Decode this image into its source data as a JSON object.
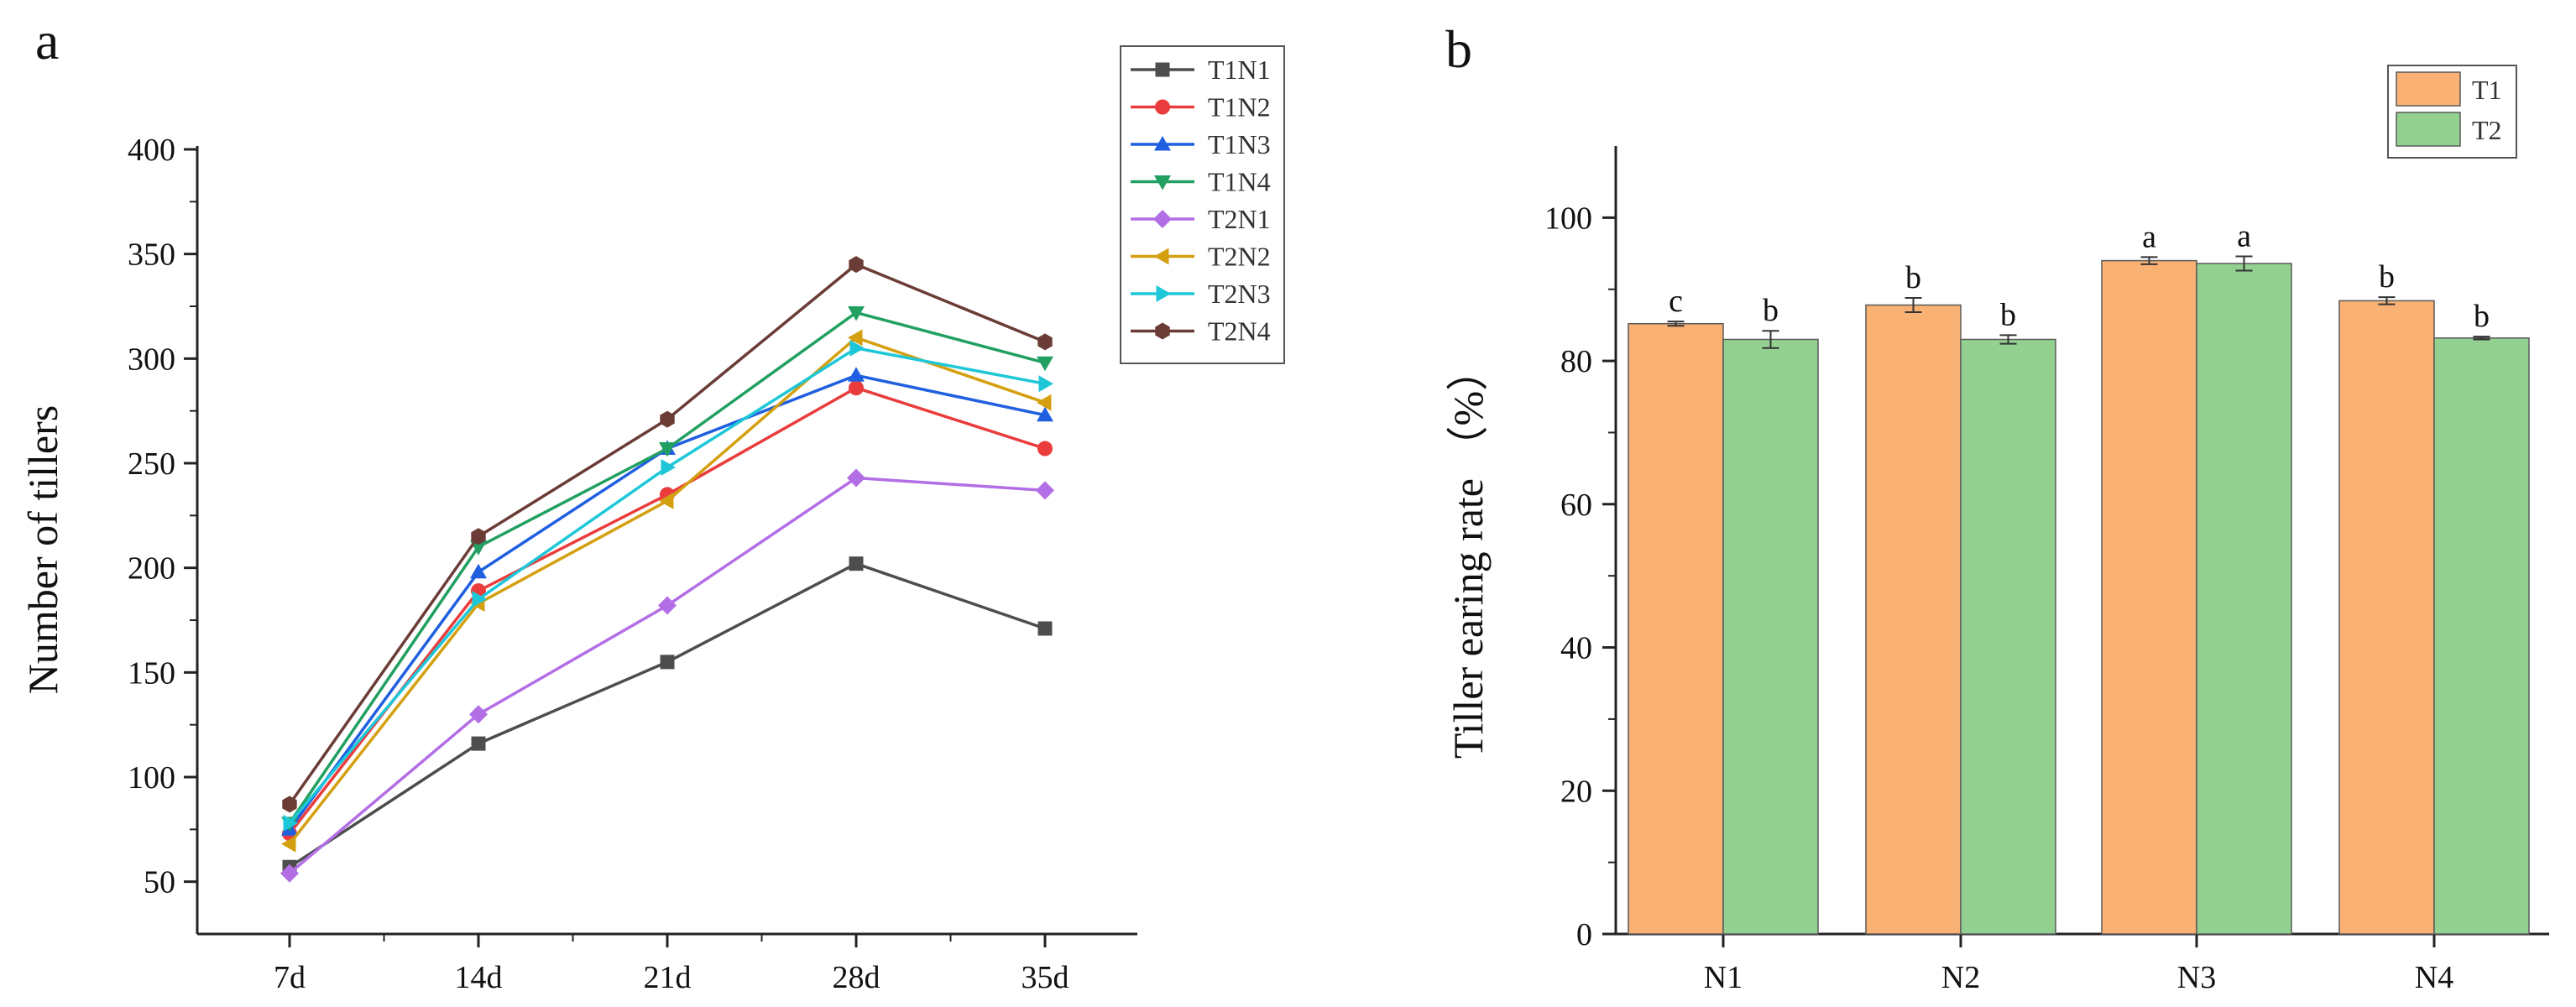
{
  "chart_data": [
    {
      "type": "line",
      "panel_label": "a",
      "title": "",
      "xlabel": "",
      "ylabel": "Number of tillers",
      "categories": [
        "7d",
        "14d",
        "21d",
        "28d",
        "35d"
      ],
      "ylim": [
        25,
        400
      ],
      "yticks": [
        50,
        100,
        150,
        200,
        250,
        300,
        350,
        400
      ],
      "grid": false,
      "legend_position": "top-right",
      "series": [
        {
          "name": "T1N1",
          "values": [
            57,
            116,
            155,
            202,
            171
          ],
          "color": "#4d4d4d",
          "marker": "square"
        },
        {
          "name": "T1N2",
          "values": [
            73,
            189,
            235,
            286,
            257
          ],
          "color": "#ea3c3c",
          "marker": "circle"
        },
        {
          "name": "T1N3",
          "values": [
            75,
            198,
            257,
            292,
            273
          ],
          "color": "#1f5fe0",
          "marker": "triangle-up"
        },
        {
          "name": "T1N4",
          "values": [
            78,
            210,
            257,
            322,
            298
          ],
          "color": "#22a061",
          "marker": "triangle-down"
        },
        {
          "name": "T2N1",
          "values": [
            54,
            130,
            182,
            243,
            237
          ],
          "color": "#b36ee6",
          "marker": "diamond"
        },
        {
          "name": "T2N2",
          "values": [
            68,
            183,
            232,
            310,
            279
          ],
          "color": "#d4a010",
          "marker": "triangle-left"
        },
        {
          "name": "T2N3",
          "values": [
            78,
            185,
            248,
            305,
            288
          ],
          "color": "#1ec7d8",
          "marker": "triangle-right"
        },
        {
          "name": "T2N4",
          "values": [
            87,
            215,
            271,
            345,
            308
          ],
          "color": "#6b3c36",
          "marker": "hexagon"
        }
      ]
    },
    {
      "type": "bar",
      "panel_label": "b",
      "title": "",
      "xlabel": "",
      "ylabel": "Tiller earing rate （%）",
      "categories": [
        "N1",
        "N2",
        "N3",
        "N4"
      ],
      "ylim": [
        0,
        110
      ],
      "yticks": [
        0,
        20,
        40,
        60,
        80,
        100
      ],
      "grid": false,
      "legend_position": "top-right",
      "series": [
        {
          "name": "T1",
          "values": [
            85.2,
            87.8,
            94.0,
            88.4
          ],
          "errors": [
            0.3,
            1.0,
            0.5,
            0.5
          ],
          "letters": [
            "c",
            "b",
            "a",
            "b"
          ],
          "color": "#f9b174"
        },
        {
          "name": "T2",
          "values": [
            83.0,
            83.0,
            93.6,
            83.2
          ],
          "errors": [
            1.2,
            0.6,
            1.0,
            0.2
          ],
          "letters": [
            "b",
            "b",
            "a",
            "b"
          ],
          "color": "#92d18f"
        }
      ]
    }
  ]
}
